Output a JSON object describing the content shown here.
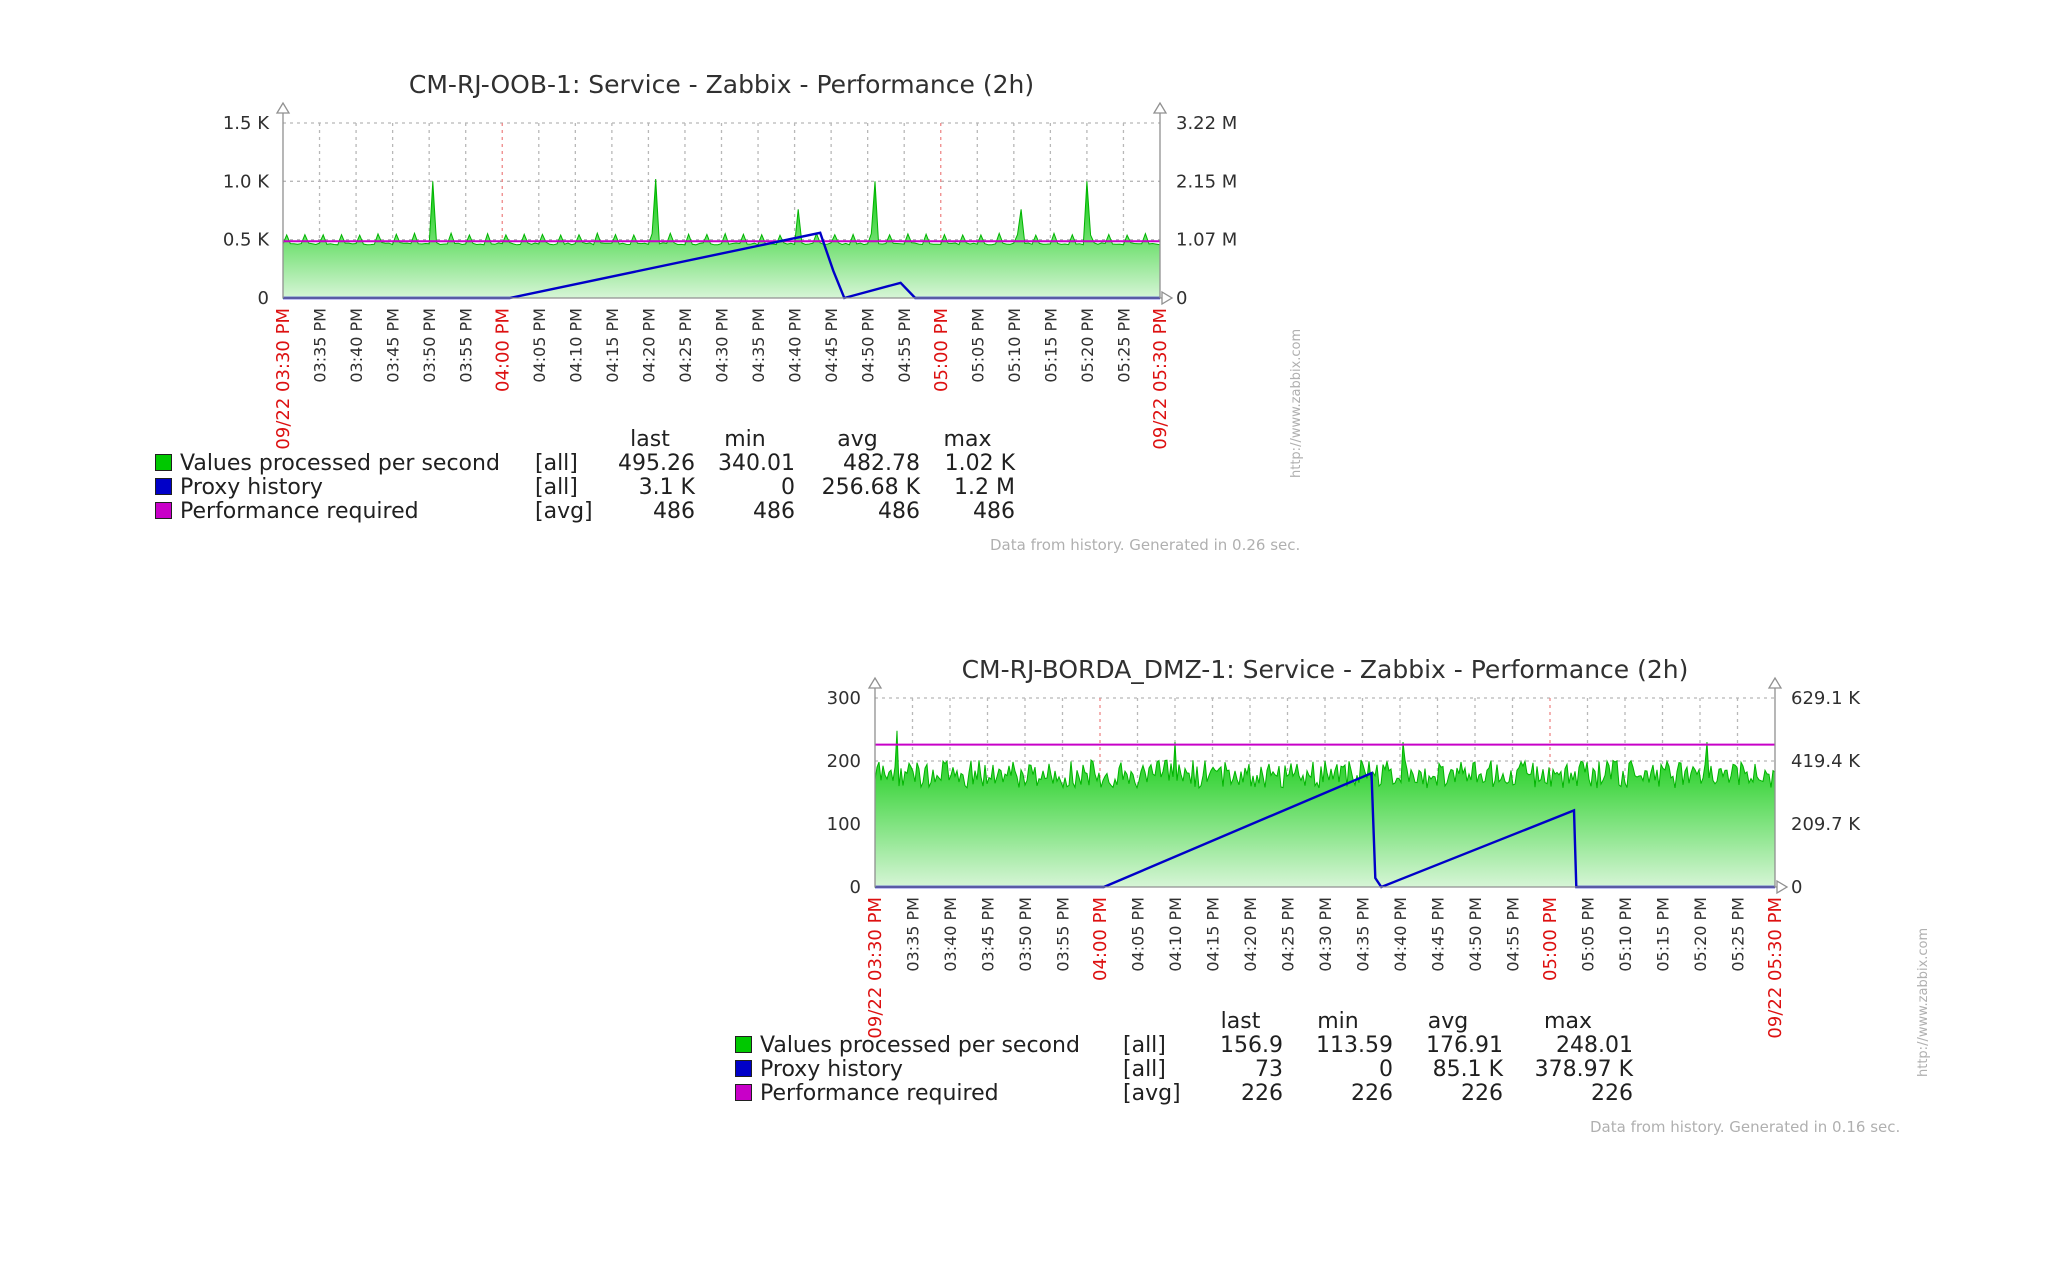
{
  "colors": {
    "values_processed": "#00c800",
    "proxy_history": "#0000c8",
    "performance_required": "#c800c8",
    "major_tick": "#dd1111"
  },
  "chart_data": [
    {
      "type": "area",
      "title": "CM-RJ-OOB-1: Service - Zabbix - Performance (2h)",
      "x_ticks_minor": [
        "03:35 PM",
        "03:40 PM",
        "03:45 PM",
        "03:50 PM",
        "03:55 PM",
        "04:05 PM",
        "04:10 PM",
        "04:15 PM",
        "04:20 PM",
        "04:25 PM",
        "04:30 PM",
        "04:35 PM",
        "04:40 PM",
        "04:45 PM",
        "04:50 PM",
        "04:55 PM",
        "05:05 PM",
        "05:10 PM",
        "05:15 PM",
        "05:20 PM",
        "05:25 PM"
      ],
      "x_ticks_major": [
        "09/22 03:30 PM",
        "04:00 PM",
        "05:00 PM",
        "09/22 05:30 PM"
      ],
      "x_range_minutes": [
        0,
        120
      ],
      "y_left_ticks": [
        "0",
        "0.5 K",
        "1.0 K",
        "1.5 K"
      ],
      "y_left_range": [
        0,
        1500
      ],
      "y_right_ticks": [
        "0",
        "1.07 M",
        "2.15 M",
        "3.22 M"
      ],
      "y_right_range": [
        0,
        3220000
      ],
      "series": [
        {
          "name": "Values processed per second",
          "axis": "left",
          "base": 480,
          "spike_values": [
            {
              "x": 20.5,
              "y": 1000
            },
            {
              "x": 51,
              "y": 1020
            },
            {
              "x": 81,
              "y": 1000
            },
            {
              "x": 110,
              "y": 1000
            },
            {
              "x": 70.5,
              "y": 760
            },
            {
              "x": 101,
              "y": 760
            }
          ]
        },
        {
          "name": "Proxy history",
          "axis": "right",
          "x": [
            0,
            31,
            73.5,
            75.3,
            76.8,
            84.5,
            86.5,
            120
          ],
          "y": [
            0,
            0,
            1200000,
            500000,
            0,
            280000,
            0,
            0
          ]
        },
        {
          "name": "Performance required",
          "axis": "left",
          "x": [
            0,
            120
          ],
          "y": [
            486,
            486
          ]
        }
      ],
      "legend": {
        "headers": {
          "last": "last",
          "min": "min",
          "avg": "avg",
          "max": "max"
        },
        "rows": [
          {
            "name": "Values processed per second",
            "func": "[all]",
            "last": "495.26",
            "min": "340.01",
            "avg": "482.78",
            "max": "1.02 K"
          },
          {
            "name": "Proxy history",
            "func": "[all]",
            "last": "3.1 K",
            "min": "0",
            "avg": "256.68 K",
            "max": "1.2 M"
          },
          {
            "name": "Performance required",
            "func": "[avg]",
            "last": "486",
            "min": "486",
            "avg": "486",
            "max": "486"
          }
        ]
      },
      "watermark": "http://www.zabbix.com",
      "footer": "Data from history. Generated in 0.26 sec."
    },
    {
      "type": "area",
      "title": "CM-RJ-BORDA_DMZ-1: Service - Zabbix - Performance (2h)",
      "x_ticks_minor": [
        "03:35 PM",
        "03:40 PM",
        "03:45 PM",
        "03:50 PM",
        "03:55 PM",
        "04:05 PM",
        "04:10 PM",
        "04:15 PM",
        "04:20 PM",
        "04:25 PM",
        "04:30 PM",
        "04:35 PM",
        "04:40 PM",
        "04:45 PM",
        "04:50 PM",
        "04:55 PM",
        "05:05 PM",
        "05:10 PM",
        "05:15 PM",
        "05:20 PM",
        "05:25 PM"
      ],
      "x_ticks_major": [
        "09/22 03:30 PM",
        "04:00 PM",
        "05:00 PM",
        "09/22 05:30 PM"
      ],
      "x_range_minutes": [
        0,
        120
      ],
      "y_left_ticks": [
        "0",
        "100",
        "200",
        "300"
      ],
      "y_left_range": [
        0,
        300
      ],
      "y_right_ticks": [
        "0",
        "209.7 K",
        "419.4 K",
        "629.1 K"
      ],
      "y_right_range": [
        0,
        629100
      ],
      "series": [
        {
          "name": "Values processed per second",
          "axis": "left",
          "base": 177,
          "spike_values": [
            {
              "x": 3,
              "y": 248
            },
            {
              "x": 40,
              "y": 230
            },
            {
              "x": 70.5,
              "y": 230
            },
            {
              "x": 111,
              "y": 230
            }
          ]
        },
        {
          "name": "Proxy history",
          "axis": "right",
          "x": [
            0,
            30.5,
            66.2,
            66.7,
            67.5,
            93.2,
            93.5,
            120
          ],
          "y": [
            0,
            0,
            378970,
            30000,
            0,
            255000,
            0,
            0
          ]
        },
        {
          "name": "Performance required",
          "axis": "left",
          "x": [
            0,
            120
          ],
          "y": [
            226,
            226
          ]
        }
      ],
      "legend": {
        "headers": {
          "last": "last",
          "min": "min",
          "avg": "avg",
          "max": "max"
        },
        "rows": [
          {
            "name": "Values processed per second",
            "func": "[all]",
            "last": "156.9",
            "min": "113.59",
            "avg": "176.91",
            "max": "248.01"
          },
          {
            "name": "Proxy history",
            "func": "[all]",
            "last": "73",
            "min": "0",
            "avg": "85.1 K",
            "max": "378.97 K"
          },
          {
            "name": "Performance required",
            "func": "[avg]",
            "last": "226",
            "min": "226",
            "avg": "226",
            "max": "226"
          }
        ]
      },
      "watermark": "http://www.zabbix.com",
      "footer": "Data from history. Generated in 0.16 sec."
    }
  ]
}
